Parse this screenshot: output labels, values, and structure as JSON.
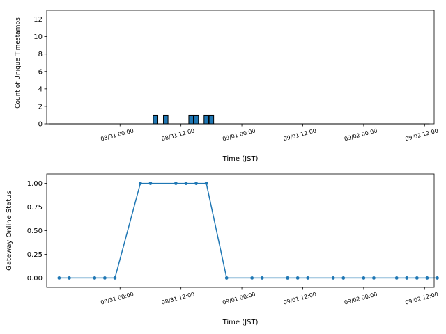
{
  "chart_data": [
    {
      "type": "bar",
      "xlabel": "Time (JST)",
      "ylabel": "Count of Unique Timestamps",
      "ylim": [
        0,
        13
      ],
      "yticks": [
        0,
        2,
        4,
        6,
        8,
        10,
        12
      ],
      "xlim": [
        "2024-08-30 09:33",
        "2024-09-02 13:53"
      ],
      "xticks": [
        {
          "t": "2024-08-31 00:00",
          "label": "08/31 00:00"
        },
        {
          "t": "2024-08-31 12:00",
          "label": "08/31 12:00"
        },
        {
          "t": "2024-09-01 00:00",
          "label": "09/01 00:00"
        },
        {
          "t": "2024-09-01 12:00",
          "label": "09/01 12:00"
        },
        {
          "t": "2024-09-02 00:00",
          "label": "09/02 00:00"
        },
        {
          "t": "2024-09-02 12:00",
          "label": "09/02 12:00"
        }
      ],
      "bar_width_hours": 1,
      "bars": [
        {
          "t": "2024-08-31 07:00",
          "value": 1
        },
        {
          "t": "2024-08-31 09:00",
          "value": 1
        },
        {
          "t": "2024-08-31 14:00",
          "value": 1
        },
        {
          "t": "2024-08-31 15:00",
          "value": 1
        },
        {
          "t": "2024-08-31 17:00",
          "value": 1
        },
        {
          "t": "2024-08-31 18:00",
          "value": 1
        }
      ],
      "baseline_start": "2024-08-30 10:00",
      "baseline_end": "2024-09-02 13:00",
      "colors": {
        "bar": "#1f77b4",
        "edge": "#000000"
      }
    },
    {
      "type": "line",
      "xlabel": "Time (JST)",
      "ylabel": "Gateway Online Status",
      "ylim": [
        -0.1,
        1.1
      ],
      "yticks": [
        "0.00",
        "0.25",
        "0.50",
        "0.75",
        "1.00"
      ],
      "xlim": [
        "2024-08-30 09:33",
        "2024-09-02 13:53"
      ],
      "xticks": [
        {
          "t": "2024-08-31 00:00",
          "label": "08/31 00:00"
        },
        {
          "t": "2024-08-31 12:00",
          "label": "08/31 12:00"
        },
        {
          "t": "2024-09-01 00:00",
          "label": "09/01 00:00"
        },
        {
          "t": "2024-09-01 12:00",
          "label": "09/01 12:00"
        },
        {
          "t": "2024-09-02 00:00",
          "label": "09/02 00:00"
        },
        {
          "t": "2024-09-02 12:00",
          "label": "09/02 12:00"
        }
      ],
      "points": [
        {
          "t": "2024-08-30 12:00",
          "y": 0
        },
        {
          "t": "2024-08-30 14:00",
          "y": 0
        },
        {
          "t": "2024-08-30 19:00",
          "y": 0
        },
        {
          "t": "2024-08-30 21:00",
          "y": 0
        },
        {
          "t": "2024-08-30 23:00",
          "y": 0
        },
        {
          "t": "2024-08-31 04:00",
          "y": 1
        },
        {
          "t": "2024-08-31 06:00",
          "y": 1
        },
        {
          "t": "2024-08-31 11:00",
          "y": 1
        },
        {
          "t": "2024-08-31 13:00",
          "y": 1
        },
        {
          "t": "2024-08-31 15:00",
          "y": 1
        },
        {
          "t": "2024-08-31 17:00",
          "y": 1
        },
        {
          "t": "2024-08-31 21:00",
          "y": 0
        },
        {
          "t": "2024-09-01 02:00",
          "y": 0
        },
        {
          "t": "2024-09-01 04:00",
          "y": 0
        },
        {
          "t": "2024-09-01 09:00",
          "y": 0
        },
        {
          "t": "2024-09-01 11:00",
          "y": 0
        },
        {
          "t": "2024-09-01 13:00",
          "y": 0
        },
        {
          "t": "2024-09-01 18:00",
          "y": 0
        },
        {
          "t": "2024-09-01 20:00",
          "y": 0
        },
        {
          "t": "2024-09-02 00:00",
          "y": 0
        },
        {
          "t": "2024-09-02 02:00",
          "y": 0
        },
        {
          "t": "2024-09-02 06:30",
          "y": 0
        },
        {
          "t": "2024-09-02 08:30",
          "y": 0
        },
        {
          "t": "2024-09-02 10:30",
          "y": 0
        },
        {
          "t": "2024-09-02 12:30",
          "y": 0
        },
        {
          "t": "2024-09-02 14:30",
          "y": 0
        }
      ],
      "colors": {
        "line": "#1f77b4"
      }
    }
  ]
}
